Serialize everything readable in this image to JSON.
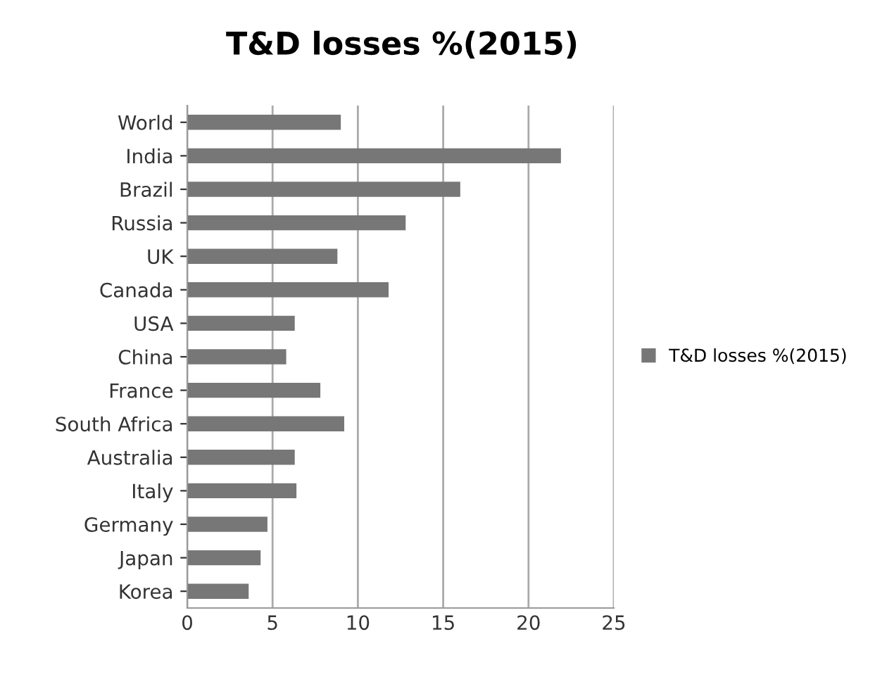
{
  "chart_data": {
    "type": "bar",
    "orientation": "horizontal",
    "title": "T&D losses %(2015)",
    "categories": [
      "World",
      "India",
      "Brazil",
      "Russia",
      "UK",
      "Canada",
      "USA",
      "China",
      "France",
      "South Africa",
      "Australia",
      "Italy",
      "Germany",
      "Japan",
      "Korea"
    ],
    "series": [
      {
        "name": "T&D losses %(2015)",
        "color": "#777777",
        "values": [
          9.0,
          21.9,
          16.0,
          12.8,
          8.8,
          11.8,
          6.3,
          5.8,
          7.8,
          9.2,
          6.3,
          6.4,
          4.7,
          4.3,
          3.6
        ]
      }
    ],
    "xlim": [
      0,
      25
    ],
    "xticks": [
      0,
      5,
      10,
      15,
      20,
      25
    ],
    "grid": "x",
    "legend": "right"
  }
}
